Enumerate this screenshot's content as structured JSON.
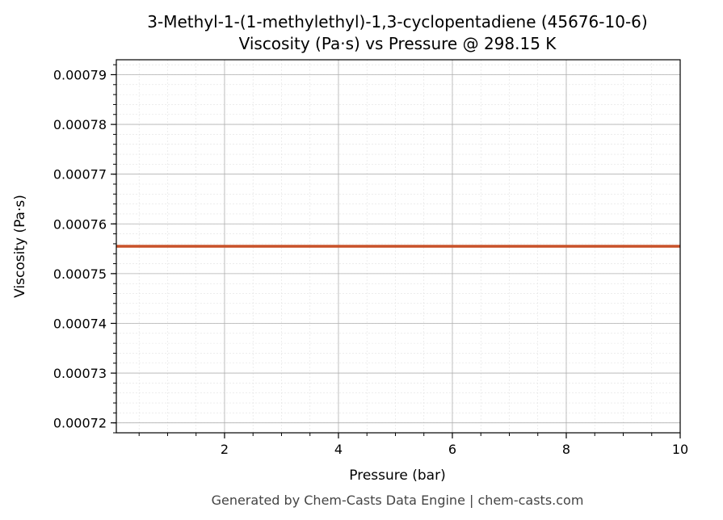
{
  "chart_data": {
    "type": "line",
    "title": "3-Methyl-1-(1-methylethyl)-1,3-cyclopentadiene (45676-10-6)",
    "subtitle": "Viscosity (Pa·s) vs Pressure @ 298.15 K",
    "xlabel": "Pressure (bar)",
    "ylabel": "Viscosity (Pa·s)",
    "xlim": [
      0.1,
      10
    ],
    "ylim": [
      0.000718,
      0.000793
    ],
    "x_ticks": [
      2,
      4,
      6,
      8,
      10
    ],
    "x_tick_labels": [
      "2",
      "4",
      "6",
      "8",
      "10"
    ],
    "y_ticks": [
      0.00072,
      0.00073,
      0.00074,
      0.00075,
      0.00076,
      0.00077,
      0.00078,
      0.00079
    ],
    "y_tick_labels": [
      "0.00072",
      "0.00073",
      "0.00074",
      "0.00075",
      "0.00076",
      "0.00077",
      "0.00078",
      "0.00079"
    ],
    "grid": true,
    "minor_grid": true,
    "series": [
      {
        "color": "#c8522a",
        "x": [
          0.1,
          10
        ],
        "y": [
          0.0007555,
          0.0007555
        ]
      }
    ]
  },
  "footer": "Generated by Chem-Casts Data Engine | chem-casts.com"
}
